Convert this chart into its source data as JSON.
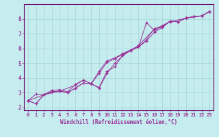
{
  "xlabel": "Windchill (Refroidissement éolien,°C)",
  "background_color": "#c5ecee",
  "grid_color": "#aad8da",
  "line_color": "#993399",
  "spine_color": "#660066",
  "xlim": [
    -0.5,
    23.5
  ],
  "ylim": [
    1.8,
    9.0
  ],
  "xticks": [
    0,
    1,
    2,
    3,
    4,
    5,
    6,
    7,
    8,
    9,
    10,
    11,
    12,
    13,
    14,
    15,
    16,
    17,
    18,
    19,
    20,
    21,
    22,
    23
  ],
  "yticks": [
    2,
    3,
    4,
    5,
    6,
    7,
    8
  ],
  "series": [
    {
      "x": [
        0,
        1,
        2,
        3,
        4,
        5,
        6,
        7,
        8,
        9,
        10,
        11,
        12,
        13,
        14,
        15,
        16,
        17,
        18,
        19,
        20,
        21,
        22,
        23
      ],
      "y": [
        2.45,
        2.9,
        2.85,
        3.15,
        3.2,
        3.05,
        3.55,
        3.85,
        3.6,
        3.3,
        4.3,
        5.0,
        5.5,
        5.85,
        6.1,
        7.75,
        7.2,
        7.5,
        7.85,
        7.8,
        8.05,
        8.15,
        8.2,
        8.5
      ]
    },
    {
      "x": [
        0,
        1,
        2,
        3,
        4,
        5,
        6,
        7,
        8,
        9,
        10,
        11,
        12,
        13,
        14,
        15,
        16,
        17,
        18,
        19,
        20,
        21,
        22,
        23
      ],
      "y": [
        2.45,
        2.25,
        2.85,
        3.05,
        3.1,
        3.0,
        3.3,
        3.65,
        3.6,
        4.3,
        5.05,
        5.3,
        5.6,
        5.85,
        6.1,
        6.5,
        7.1,
        7.4,
        7.85,
        7.8,
        8.05,
        8.15,
        8.2,
        8.5
      ]
    },
    {
      "x": [
        0,
        1,
        2,
        3,
        4,
        5,
        6,
        7,
        8,
        9,
        10,
        11,
        12,
        13,
        14,
        15,
        16,
        17,
        18,
        19,
        20,
        21,
        22,
        23
      ],
      "y": [
        2.45,
        2.25,
        2.85,
        3.05,
        3.1,
        3.0,
        3.3,
        3.65,
        3.6,
        4.45,
        5.15,
        5.35,
        5.65,
        5.9,
        6.1,
        6.6,
        7.35,
        7.45,
        7.85,
        7.8,
        8.05,
        8.15,
        8.2,
        8.5
      ]
    },
    {
      "x": [
        0,
        2,
        4,
        6,
        7,
        8,
        9,
        10,
        11,
        12,
        14,
        16,
        18,
        20,
        22,
        23
      ],
      "y": [
        2.45,
        2.85,
        3.1,
        3.5,
        3.85,
        3.6,
        3.35,
        4.45,
        4.75,
        5.55,
        6.2,
        7.3,
        7.8,
        8.05,
        8.2,
        8.5
      ]
    }
  ]
}
